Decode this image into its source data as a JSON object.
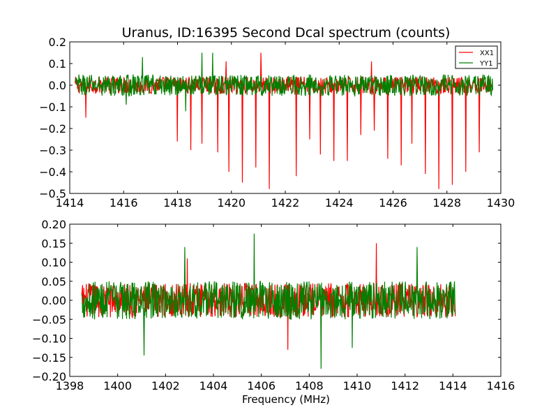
{
  "chart_data": [
    {
      "type": "line",
      "title": "Uranus, ID:16395 Second Dcal spectrum (counts)",
      "xlabel": "",
      "ylabel": "",
      "xlim": [
        1414,
        1430
      ],
      "ylim": [
        -0.5,
        0.2
      ],
      "xticks": [
        "1414",
        "1416",
        "1418",
        "1420",
        "1422",
        "1424",
        "1426",
        "1428",
        "1430"
      ],
      "yticks": [
        "0.2",
        "0.1",
        "0.0",
        "−0.1",
        "−0.2",
        "−0.3",
        "−0.4",
        "−0.5"
      ],
      "grid": false,
      "legend": {
        "placement": "top-right",
        "entries": [
          "XX1",
          "YY1"
        ]
      },
      "x_range": [
        1414.2,
        1429.7
      ],
      "series": [
        {
          "name": "XX1",
          "color": "#ff0000",
          "noise_amplitude": 0.04,
          "spikes": [
            {
              "x": 1414.6,
              "y": -0.15
            },
            {
              "x": 1418.0,
              "y": -0.26
            },
            {
              "x": 1418.5,
              "y": -0.3
            },
            {
              "x": 1418.9,
              "y": -0.27
            },
            {
              "x": 1419.5,
              "y": -0.31
            },
            {
              "x": 1419.9,
              "y": -0.4
            },
            {
              "x": 1420.4,
              "y": -0.45
            },
            {
              "x": 1420.9,
              "y": -0.38
            },
            {
              "x": 1421.4,
              "y": -0.48
            },
            {
              "x": 1422.4,
              "y": -0.42
            },
            {
              "x": 1422.9,
              "y": -0.25
            },
            {
              "x": 1423.3,
              "y": -0.32
            },
            {
              "x": 1423.8,
              "y": -0.35
            },
            {
              "x": 1424.3,
              "y": -0.35
            },
            {
              "x": 1424.8,
              "y": -0.23
            },
            {
              "x": 1425.3,
              "y": -0.21
            },
            {
              "x": 1425.8,
              "y": -0.34
            },
            {
              "x": 1426.3,
              "y": -0.37
            },
            {
              "x": 1426.7,
              "y": -0.27
            },
            {
              "x": 1427.2,
              "y": -0.41
            },
            {
              "x": 1427.7,
              "y": -0.48
            },
            {
              "x": 1428.2,
              "y": -0.46
            },
            {
              "x": 1428.7,
              "y": -0.4
            },
            {
              "x": 1429.2,
              "y": -0.31
            },
            {
              "x": 1421.1,
              "y": 0.15
            },
            {
              "x": 1419.8,
              "y": 0.11
            },
            {
              "x": 1425.2,
              "y": 0.11
            }
          ]
        },
        {
          "name": "YY1",
          "color": "#008000",
          "noise_amplitude": 0.05,
          "spikes": [
            {
              "x": 1416.7,
              "y": 0.13
            },
            {
              "x": 1418.9,
              "y": 0.15
            },
            {
              "x": 1419.3,
              "y": 0.15
            },
            {
              "x": 1416.1,
              "y": -0.09
            },
            {
              "x": 1418.3,
              "y": -0.12
            }
          ]
        }
      ]
    },
    {
      "type": "line",
      "title": "",
      "xlabel": "Frequency (MHz)",
      "ylabel": "",
      "xlim": [
        1398,
        1416
      ],
      "ylim": [
        -0.2,
        0.2
      ],
      "xticks": [
        "1398",
        "1400",
        "1402",
        "1404",
        "1406",
        "1408",
        "1410",
        "1412",
        "1414",
        "1416"
      ],
      "yticks": [
        "0.20",
        "0.15",
        "0.10",
        "0.05",
        "0.00",
        "−0.05",
        "−0.10",
        "−0.15",
        "−0.20"
      ],
      "grid": false,
      "x_range": [
        1398.5,
        1414.1
      ],
      "series": [
        {
          "name": "XX1",
          "color": "#ff0000",
          "noise_amplitude": 0.045,
          "spikes": [
            {
              "x": 1410.8,
              "y": 0.15
            },
            {
              "x": 1407.1,
              "y": -0.13
            },
            {
              "x": 1402.9,
              "y": 0.11
            }
          ]
        },
        {
          "name": "YY1",
          "color": "#008000",
          "noise_amplitude": 0.05,
          "spikes": [
            {
              "x": 1405.7,
              "y": 0.175
            },
            {
              "x": 1408.5,
              "y": -0.18
            },
            {
              "x": 1402.8,
              "y": 0.14
            },
            {
              "x": 1401.1,
              "y": -0.145
            },
            {
              "x": 1412.5,
              "y": 0.14
            },
            {
              "x": 1409.8,
              "y": -0.125
            }
          ]
        }
      ]
    }
  ]
}
